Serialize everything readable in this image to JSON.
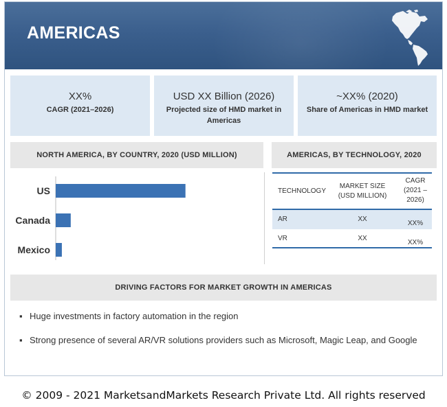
{
  "banner": {
    "title": "AMERICAS"
  },
  "stats": [
    {
      "main": "XX%",
      "sub": "CAGR (2021–2026)"
    },
    {
      "main": "USD XX Billion (2026)",
      "sub": "Projected size of HMD market in Americas"
    },
    {
      "main": "~XX% (2020)",
      "sub": "Share of Americas in HMD market"
    }
  ],
  "north_america": {
    "heading": "NORTH AMERICA, BY COUNTRY, 2020 (USD MILLION)"
  },
  "chart_data": {
    "type": "bar",
    "orientation": "horizontal",
    "title": "NORTH AMERICA, BY COUNTRY, 2020 (USD MILLION)",
    "categories": [
      "US",
      "Canada",
      "Mexico"
    ],
    "values": [
      190,
      22,
      9
    ],
    "xlim": [
      0,
      290
    ],
    "color": "#3b72b4",
    "grid": false,
    "legend": "none"
  },
  "technology": {
    "heading": "AMERICAS, BY TECHNOLOGY, 2020",
    "columns": [
      "TECHNOLOGY",
      "MARKET SIZE (USD MILLION)",
      "CAGR (2021 – 2026)"
    ],
    "rows": [
      {
        "tech": "AR",
        "size": "XX",
        "cagr": "XX%"
      },
      {
        "tech": "VR",
        "size": "XX",
        "cagr": "XX%"
      }
    ]
  },
  "drivers": {
    "heading": "DRIVING FACTORS FOR MARKET GROWTH IN AMERICAS",
    "bullet": "▪",
    "items": [
      "Huge investments in factory automation in the region",
      "Strong presence of several AR/VR solutions providers such as Microsoft, Magic Leap, and Google"
    ]
  },
  "footer": {
    "copyright": "© 2009 - 2021 MarketsandMarkets Research Private Ltd. All rights reserved"
  },
  "colors": {
    "banner": "#3b5f8d",
    "accent": "#2f6aa8",
    "bar": "#3b72b4",
    "card": "#dde8f3",
    "header": "#e7e7e7"
  },
  "icons": {
    "map": "americas-map-icon"
  }
}
